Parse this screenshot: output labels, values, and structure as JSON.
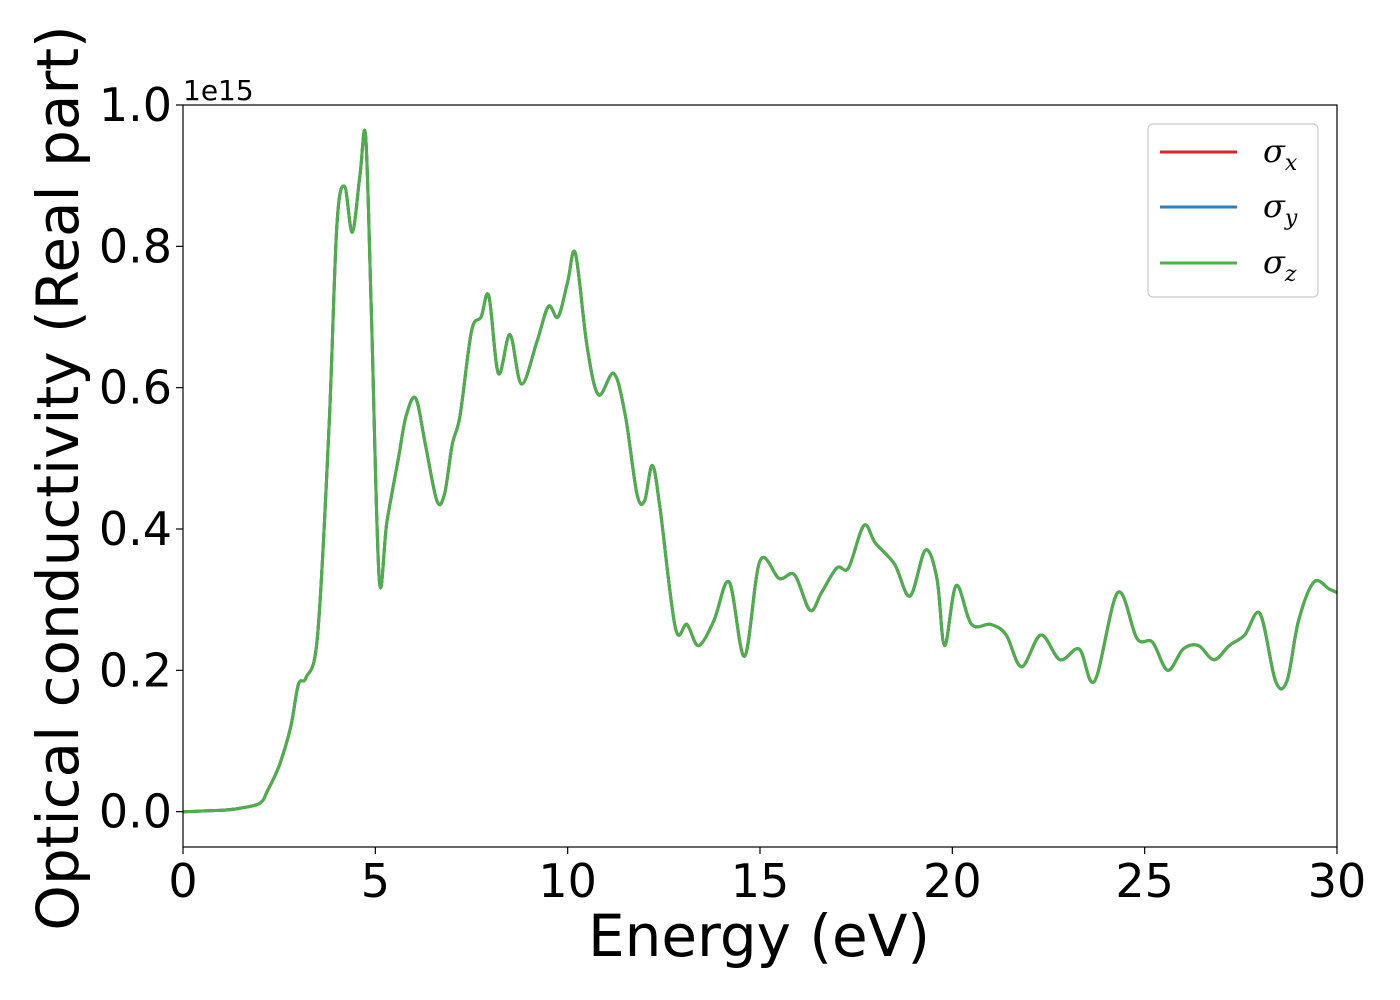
{
  "chart_data": {
    "type": "line",
    "xlabel": "Energy (eV)",
    "ylabel": "Optical conductivity (Real part)",
    "y_offset_text": "1e15",
    "y_multiplier": 1000000000000000.0,
    "xlim": [
      0,
      30
    ],
    "ylim": [
      -0.05,
      1.0
    ],
    "xticks": [
      0,
      5,
      10,
      15,
      20,
      25,
      30
    ],
    "xtick_labels": [
      "0",
      "5",
      "10",
      "15",
      "20",
      "25",
      "30"
    ],
    "yticks": [
      0.0,
      0.2,
      0.4,
      0.6,
      0.8,
      1.0
    ],
    "ytick_labels": [
      "0.0",
      "0.2",
      "0.4",
      "0.6",
      "0.8",
      "1.0"
    ],
    "grid": false,
    "legend_position": "top-right",
    "x": [
      0,
      1,
      1.5,
      2,
      2.2,
      2.5,
      2.8,
      3.0,
      3.2,
      3.5,
      3.8,
      4.0,
      4.2,
      4.4,
      4.6,
      4.75,
      4.9,
      5.1,
      5.3,
      5.6,
      5.8,
      6.05,
      6.3,
      6.6,
      6.8,
      7.0,
      7.2,
      7.5,
      7.75,
      7.95,
      8.2,
      8.5,
      8.8,
      9.2,
      9.5,
      9.75,
      10.0,
      10.2,
      10.5,
      10.8,
      11.2,
      11.5,
      11.8,
      12.0,
      12.2,
      12.4,
      12.8,
      13.1,
      13.4,
      13.8,
      14.2,
      14.6,
      15.0,
      15.5,
      15.9,
      16.3,
      16.6,
      17.0,
      17.3,
      17.7,
      18.0,
      18.5,
      18.9,
      19.3,
      19.6,
      19.8,
      20.1,
      20.5,
      21.0,
      21.4,
      21.8,
      22.3,
      22.8,
      23.3,
      23.7,
      24.3,
      24.8,
      25.2,
      25.6,
      26.0,
      26.4,
      26.8,
      27.2,
      27.6,
      28.0,
      28.4,
      28.7,
      29.0,
      29.4,
      29.8,
      30.0
    ],
    "series": [
      {
        "name": "σx",
        "symbol": "σ",
        "subscript": "x",
        "color": "#d62728",
        "values": [
          0.0,
          0.002,
          0.005,
          0.012,
          0.03,
          0.065,
          0.12,
          0.18,
          0.19,
          0.25,
          0.55,
          0.83,
          0.885,
          0.82,
          0.9,
          0.955,
          0.7,
          0.33,
          0.41,
          0.5,
          0.56,
          0.585,
          0.52,
          0.44,
          0.45,
          0.52,
          0.56,
          0.68,
          0.7,
          0.73,
          0.62,
          0.675,
          0.605,
          0.665,
          0.715,
          0.7,
          0.75,
          0.79,
          0.66,
          0.59,
          0.62,
          0.56,
          0.45,
          0.44,
          0.49,
          0.43,
          0.26,
          0.265,
          0.235,
          0.27,
          0.325,
          0.22,
          0.355,
          0.33,
          0.335,
          0.285,
          0.31,
          0.345,
          0.345,
          0.405,
          0.38,
          0.35,
          0.305,
          0.37,
          0.33,
          0.235,
          0.32,
          0.265,
          0.265,
          0.25,
          0.205,
          0.25,
          0.215,
          0.23,
          0.185,
          0.31,
          0.245,
          0.24,
          0.2,
          0.23,
          0.235,
          0.215,
          0.235,
          0.25,
          0.28,
          0.185,
          0.185,
          0.27,
          0.325,
          0.315,
          0.31
        ]
      },
      {
        "name": "σy",
        "symbol": "σ",
        "subscript": "y",
        "color": "#377eb8",
        "values": [
          0.0,
          0.002,
          0.005,
          0.012,
          0.03,
          0.065,
          0.12,
          0.18,
          0.19,
          0.25,
          0.55,
          0.83,
          0.885,
          0.82,
          0.9,
          0.955,
          0.7,
          0.33,
          0.41,
          0.5,
          0.56,
          0.585,
          0.52,
          0.44,
          0.45,
          0.52,
          0.56,
          0.68,
          0.7,
          0.73,
          0.62,
          0.675,
          0.605,
          0.665,
          0.715,
          0.7,
          0.75,
          0.79,
          0.66,
          0.59,
          0.62,
          0.56,
          0.45,
          0.44,
          0.49,
          0.43,
          0.26,
          0.265,
          0.235,
          0.27,
          0.325,
          0.22,
          0.355,
          0.33,
          0.335,
          0.285,
          0.31,
          0.345,
          0.345,
          0.405,
          0.38,
          0.35,
          0.305,
          0.37,
          0.33,
          0.235,
          0.32,
          0.265,
          0.265,
          0.25,
          0.205,
          0.25,
          0.215,
          0.23,
          0.185,
          0.31,
          0.245,
          0.24,
          0.2,
          0.23,
          0.235,
          0.215,
          0.235,
          0.25,
          0.28,
          0.185,
          0.185,
          0.27,
          0.325,
          0.315,
          0.31
        ]
      },
      {
        "name": "σz",
        "symbol": "σ",
        "subscript": "z",
        "color": "#4daf4a",
        "values": [
          0.0,
          0.002,
          0.005,
          0.012,
          0.03,
          0.065,
          0.12,
          0.18,
          0.19,
          0.25,
          0.55,
          0.83,
          0.885,
          0.82,
          0.9,
          0.955,
          0.7,
          0.33,
          0.41,
          0.5,
          0.56,
          0.585,
          0.52,
          0.44,
          0.45,
          0.52,
          0.56,
          0.68,
          0.7,
          0.73,
          0.62,
          0.675,
          0.605,
          0.665,
          0.715,
          0.7,
          0.75,
          0.79,
          0.66,
          0.59,
          0.62,
          0.56,
          0.45,
          0.44,
          0.49,
          0.43,
          0.26,
          0.265,
          0.235,
          0.27,
          0.325,
          0.22,
          0.355,
          0.33,
          0.335,
          0.285,
          0.31,
          0.345,
          0.345,
          0.405,
          0.38,
          0.35,
          0.305,
          0.37,
          0.33,
          0.235,
          0.32,
          0.265,
          0.265,
          0.25,
          0.205,
          0.25,
          0.215,
          0.23,
          0.185,
          0.31,
          0.245,
          0.24,
          0.2,
          0.23,
          0.235,
          0.215,
          0.235,
          0.25,
          0.28,
          0.185,
          0.185,
          0.27,
          0.325,
          0.315,
          0.31
        ]
      }
    ]
  }
}
